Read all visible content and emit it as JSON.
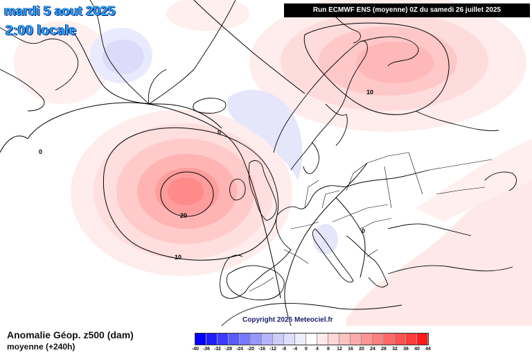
{
  "header": {
    "date_label": "mardi 5 aout 2025",
    "time_label": "2:00 locale",
    "run_info": "Run ECMWF ENS (moyenne) 0Z du samedi 26 juillet 2025"
  },
  "footer": {
    "field_title": "Anomalie Géop. z500 (dam)",
    "field_subtitle": "moyenne   (+240h)",
    "copyright": "Copyright 2025 Meteociel.fr"
  },
  "legend": {
    "ticks": [
      "-40",
      "-36",
      "-32",
      "-28",
      "-24",
      "-20",
      "-16",
      "-12",
      "-8",
      "-4",
      "0",
      "4",
      "8",
      "12",
      "16",
      "20",
      "24",
      "28",
      "32",
      "36",
      "40",
      "44"
    ],
    "colors": [
      "#0000ff",
      "#1e1eff",
      "#3c3cff",
      "#5a5aff",
      "#7878ff",
      "#9696ff",
      "#b4b4ff",
      "#ccccff",
      "#dedeff",
      "#eeeeff",
      "#ffffff",
      "#ffe9e9",
      "#ffd6d6",
      "#ffc0c0",
      "#ffaaaa",
      "#ff9494",
      "#ff7e7e",
      "#ff6868",
      "#ff5252",
      "#ff3c3c",
      "#ff1a1a"
    ]
  },
  "map": {
    "contour_labels": {
      "label_0_west": "0",
      "label_0_center": "0",
      "label_0_italy": "0",
      "label_10_north": "10",
      "label_20_low": "20",
      "label_10_low": "10"
    }
  }
}
